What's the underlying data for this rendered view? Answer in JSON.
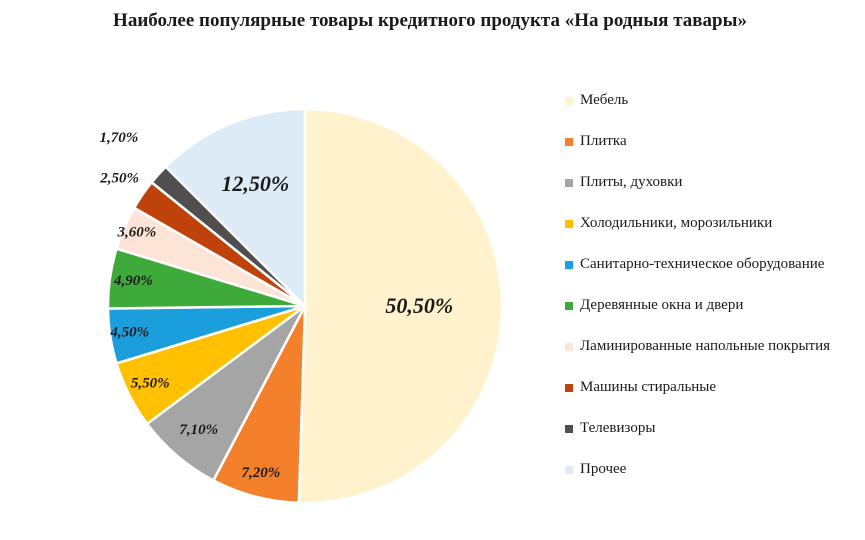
{
  "chart_data": {
    "type": "pie",
    "title": "Наиболее популярные товары кредитного продукта «На родныя тавары»",
    "legend_position": "right",
    "slices": [
      {
        "label": "Мебель",
        "value": 50.5,
        "display": "50,50%",
        "color": "#FFF2CC"
      },
      {
        "label": "Плитка",
        "value": 7.2,
        "display": "7,20%",
        "color": "#F4802B"
      },
      {
        "label": "Плиты, духовки",
        "value": 7.1,
        "display": "7,10%",
        "color": "#A5A5A5"
      },
      {
        "label": "Холодильники, морозильники",
        "value": 5.5,
        "display": "5,50%",
        "color": "#FFC000"
      },
      {
        "label": "Санитарно-техническое оборудование",
        "value": 4.5,
        "display": "4,50%",
        "color": "#1A9FDC"
      },
      {
        "label": "Деревянные окна и двери",
        "value": 4.9,
        "display": "4,90%",
        "color": "#3EAA3A"
      },
      {
        "label": "Ламинированные напольные покрытия",
        "value": 3.6,
        "display": "3,60%",
        "color": "#FCE4D6"
      },
      {
        "label": "Машины стиральные",
        "value": 2.5,
        "display": "2,50%",
        "color": "#C0420B"
      },
      {
        "label": "Телевизоры",
        "value": 1.7,
        "display": "1,70%",
        "color": "#4F4F4F"
      },
      {
        "label": "Прочее",
        "value": 12.5,
        "display": "12,50%",
        "color": "#DDEBF7"
      }
    ]
  }
}
